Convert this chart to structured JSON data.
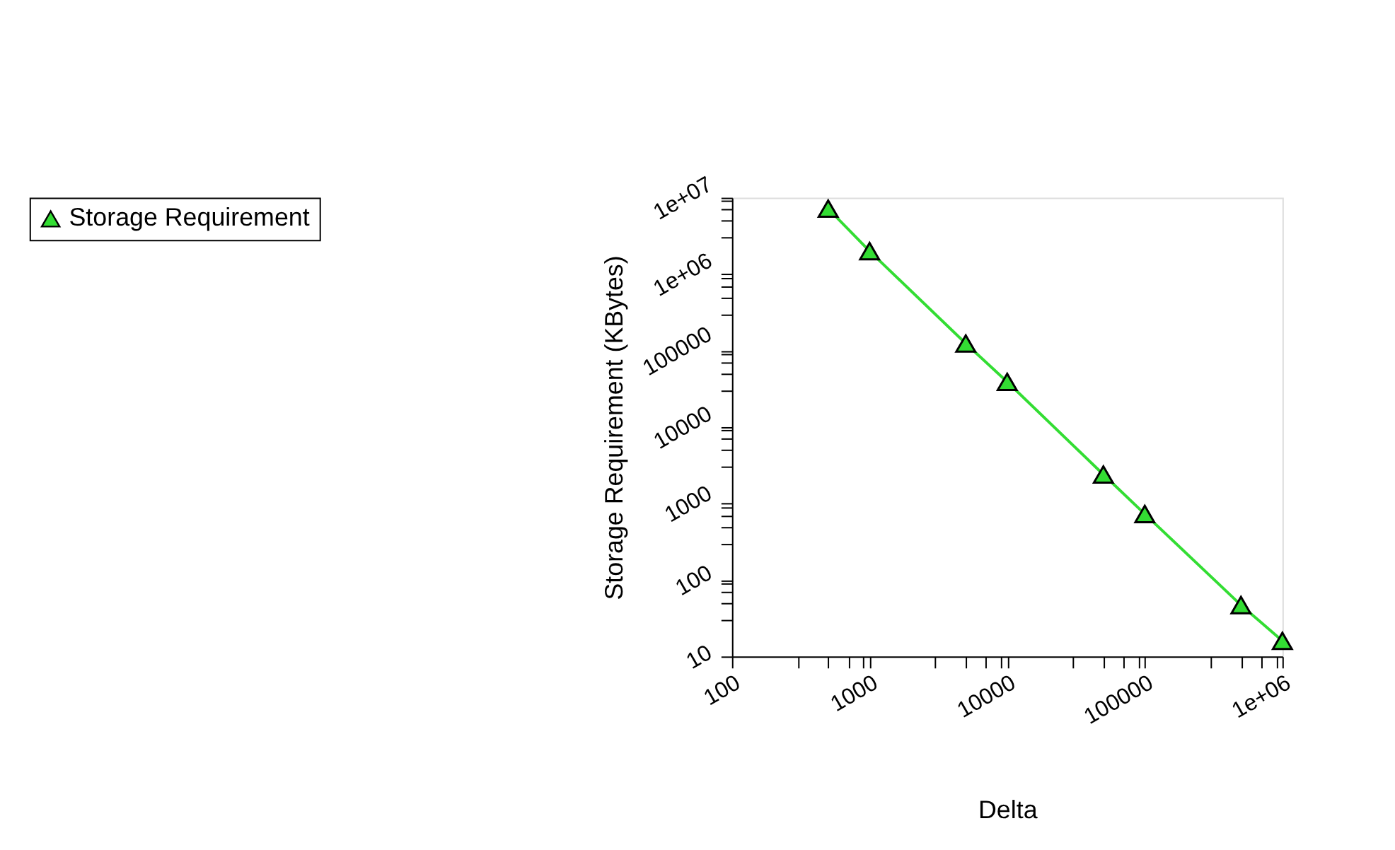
{
  "chart_data": {
    "type": "line",
    "xlabel": "Delta",
    "ylabel": "Storage Requirement (KBytes)",
    "x": [
      500,
      1000,
      5000,
      10000,
      50000,
      100000,
      500000,
      1000000
    ],
    "series": [
      {
        "name": "Storage Requirement",
        "color": "#33dd33",
        "values": [
          7200000,
          2000000,
          124000,
          39000,
          2400,
          730,
          47,
          16
        ]
      }
    ],
    "log": "xy",
    "marker": "triangle",
    "line_style": "solid",
    "grid": false,
    "legend": "left",
    "xlim": [
      100,
      1000000
    ],
    "ylim": [
      10,
      10000000
    ],
    "xticks": [
      100,
      {
        "value": 300,
        "label": null
      },
      {
        "value": 500,
        "label": null
      },
      {
        "value": 700,
        "label": null
      },
      {
        "value": 900,
        "label": null
      },
      1000,
      {
        "value": 3000,
        "label": null
      },
      {
        "value": 5000,
        "label": null
      },
      {
        "value": 7000,
        "label": null
      },
      {
        "value": 9000,
        "label": null
      },
      10000,
      {
        "value": 30000,
        "label": null
      },
      {
        "value": 50000,
        "label": null
      },
      {
        "value": 70000,
        "label": null
      },
      {
        "value": 90000,
        "label": null
      },
      100000,
      {
        "value": 300000,
        "label": null
      },
      {
        "value": 500000,
        "label": null
      },
      {
        "value": 700000,
        "label": null
      },
      {
        "value": 900000,
        "label": null
      },
      {
        "value": 1000000,
        "label": "1e+06"
      }
    ],
    "yticks": [
      10,
      {
        "value": 30,
        "label": null
      },
      {
        "value": 50,
        "label": null
      },
      {
        "value": 70,
        "label": null
      },
      {
        "value": 90,
        "label": null
      },
      100,
      {
        "value": 300,
        "label": null
      },
      {
        "value": 500,
        "label": null
      },
      {
        "value": 700,
        "label": null
      },
      {
        "value": 900,
        "label": null
      },
      1000,
      {
        "value": 3000,
        "label": null
      },
      {
        "value": 5000,
        "label": null
      },
      {
        "value": 7000,
        "label": null
      },
      {
        "value": 9000,
        "label": null
      },
      10000,
      {
        "value": 30000,
        "label": null
      },
      {
        "value": 50000,
        "label": null
      },
      {
        "value": 70000,
        "label": null
      },
      {
        "value": 90000,
        "label": null
      },
      100000,
      {
        "value": 300000,
        "label": null
      },
      {
        "value": 500000,
        "label": null
      },
      {
        "value": 700000,
        "label": null
      },
      {
        "value": 900000,
        "label": null
      },
      {
        "value": 1000000,
        "label": "1e+06"
      },
      {
        "value": 3000000,
        "label": null
      },
      {
        "value": 5000000,
        "label": null
      },
      {
        "value": 7000000,
        "label": null
      },
      {
        "value": 9000000,
        "label": null
      },
      {
        "value": 10000000,
        "label": "1e+07"
      }
    ]
  }
}
